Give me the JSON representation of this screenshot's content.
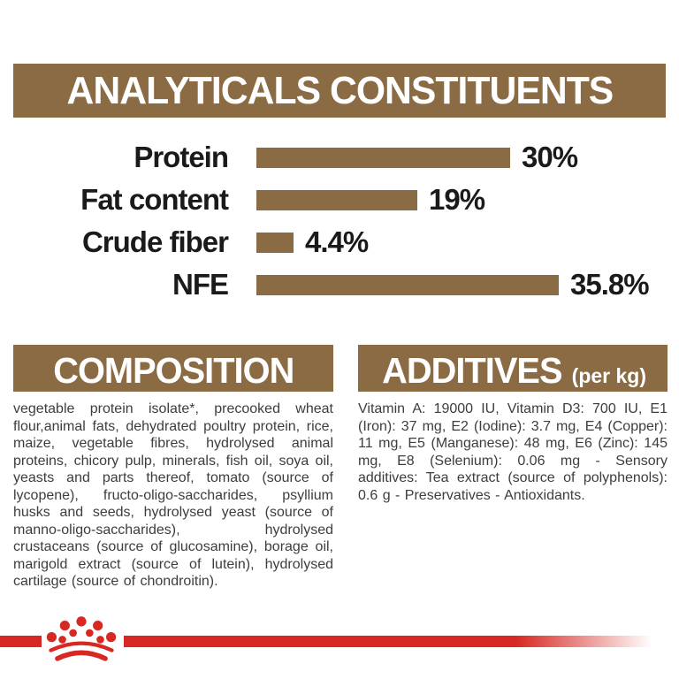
{
  "header": {
    "title": "ANALYTICALS CONSTITUENTS"
  },
  "chart_data": {
    "type": "bar",
    "orientation": "horizontal",
    "title": "ANALYTICALS CONSTITUENTS",
    "categories": [
      "Protein",
      "Fat content",
      "Crude fiber",
      "NFE"
    ],
    "values": [
      30,
      19,
      4.4,
      35.8
    ],
    "value_labels": [
      "30%",
      "19%",
      "4.4%",
      "35.8%"
    ],
    "unit": "%",
    "xlim": [
      0,
      40
    ],
    "grid": false,
    "legend": false,
    "bar_color": "#8B6B43"
  },
  "sections": {
    "composition": {
      "title": "COMPOSITION",
      "body": "vegetable protein isolate*, precooked wheat flour,animal fats, dehydrated poultry protein, rice, maize, vegetable fibres, hydrolysed animal proteins, chicory pulp, minerals, fish oil, soya oil, yeasts and parts thereof, tomato (source of lycopene), fructo-oligo-saccharides, psyllium husks and seeds, hydrolysed yeast (source of manno-oligo-saccharides), hydrolysed crustaceans (source of glucosamine), borage oil, marigold extract (source of lutein), hydrolysed cartilage (source of chondroitin)."
    },
    "additives": {
      "title": "ADDITIVES",
      "unit": "(per kg)",
      "body": "Vitamin A: 19000 IU, Vitamin D3: 700 IU, E1 (Iron): 37 mg, E2 (Iodine): 3.7 mg, E4 (Copper): 11 mg, E5 (Manganese): 48 mg, E6 (Zinc): 145 mg, E8 (Selenium): 0.06 mg - Sensory additives: Tea extract (source of polyphenols): 0.6 g - Preservatives - Antioxidants."
    }
  },
  "footer": {
    "brand_icon": "royal-canin-crown-icon"
  },
  "colors": {
    "brown": "#8B6B43",
    "red": "#D72823",
    "heading_text": "#FFFFFF",
    "chart_text": "#1A1A1A",
    "body_text": "#3D3D3D"
  }
}
